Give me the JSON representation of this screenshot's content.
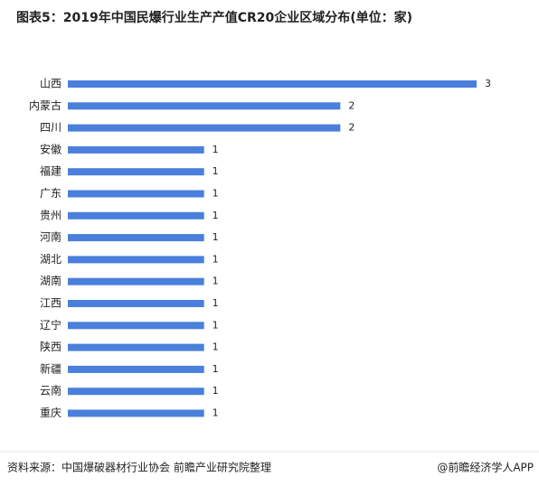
{
  "chart_data": {
    "type": "bar",
    "orientation": "horizontal",
    "title": "图表5：2019年中国民爆行业生产产值CR20企业区域分布(单位：家)",
    "categories": [
      "山西",
      "内蒙古",
      "四川",
      "安徽",
      "福建",
      "广东",
      "贵州",
      "河南",
      "湖北",
      "湖南",
      "江西",
      "辽宁",
      "陕西",
      "新疆",
      "云南",
      "重庆"
    ],
    "values": [
      3,
      2,
      2,
      1,
      1,
      1,
      1,
      1,
      1,
      1,
      1,
      1,
      1,
      1,
      1,
      1
    ],
    "color": "#4a7fdc",
    "source": "资料来源：中国爆破器材行业协会   前瞻产业研究院整理",
    "footer": "@前瞻经济学人APP"
  }
}
